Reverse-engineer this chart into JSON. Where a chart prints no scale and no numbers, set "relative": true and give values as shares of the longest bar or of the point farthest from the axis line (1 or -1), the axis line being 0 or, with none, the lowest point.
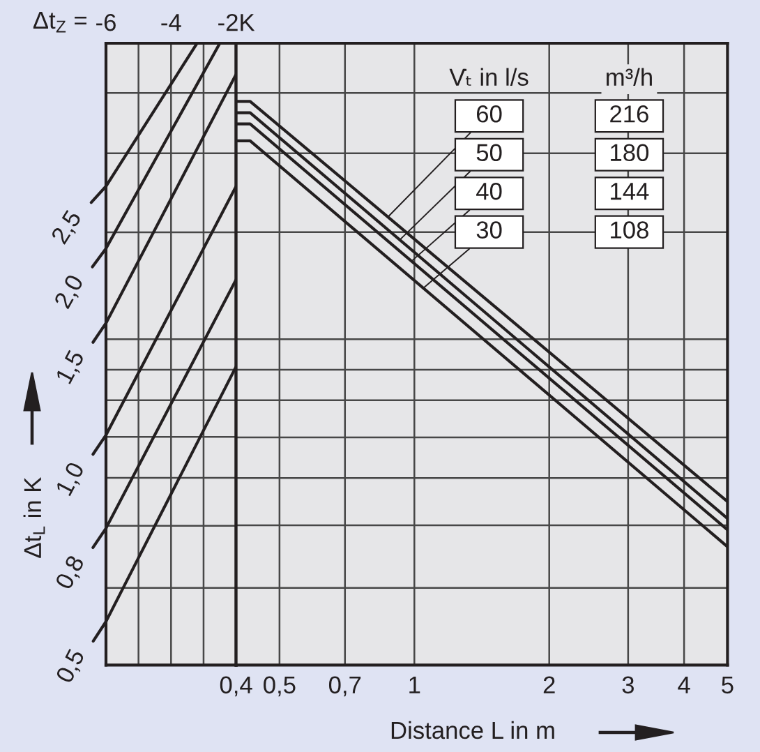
{
  "chart_data": [
    {
      "type": "line",
      "relative": true,
      "xlabel": "Δt$_{Z}$ =",
      "xlim": [
        -6,
        -2
      ],
      "xticks": [
        {
          "value": -6,
          "label": "-6"
        },
        {
          "value": -5,
          "label": null
        },
        {
          "value": -4,
          "label": "-4"
        },
        {
          "value": -3,
          "label": null
        },
        {
          "value": -2,
          "label": "-2K"
        }
      ],
      "ylabel": "Δt$_{L}$ in K",
      "grid": "x",
      "legend": "left",
      "series": [
        {
          "name": "2,5",
          "color": "#231f20",
          "x": [
            -6,
            -3.2
          ],
          "values": [
            0.77,
            1.0
          ]
        },
        {
          "name": "2,0",
          "color": "#231f20",
          "x": [
            -6,
            -2.5
          ],
          "values": [
            0.67,
            1.0
          ]
        },
        {
          "name": "1,5",
          "color": "#231f20",
          "x": [
            -6,
            -2
          ],
          "values": [
            0.55,
            0.95
          ]
        },
        {
          "name": "1,0",
          "color": "#231f20",
          "x": [
            -6,
            -2
          ],
          "values": [
            0.37,
            0.77
          ]
        },
        {
          "name": "0,8",
          "color": "#231f20",
          "x": [
            -6,
            -2
          ],
          "values": [
            0.22,
            0.62
          ]
        },
        {
          "name": "0,5",
          "color": "#231f20",
          "x": [
            -6,
            -2
          ],
          "values": [
            0.07,
            0.48
          ]
        }
      ],
      "ref_lines": [
        {
          "axis": "y",
          "value": 0.92
        },
        {
          "axis": "y",
          "value": 0.823
        },
        {
          "axis": "y",
          "value": 0.696
        },
        {
          "axis": "y",
          "value": 0.524
        },
        {
          "axis": "y",
          "value": 0.475
        },
        {
          "axis": "y",
          "value": 0.426
        },
        {
          "axis": "y",
          "value": 0.367
        },
        {
          "axis": "y",
          "value": 0.301
        },
        {
          "axis": "y",
          "value": 0.224
        },
        {
          "axis": "y",
          "value": 0.124
        }
      ]
    },
    {
      "type": "line",
      "relative": true,
      "log": "x",
      "xlabel": "Distance L in m",
      "xlim": [
        0.4,
        5
      ],
      "xticks": [
        {
          "value": 0.4,
          "label": "0,4"
        },
        {
          "value": 0.5,
          "label": "0,5"
        },
        {
          "value": 0.7,
          "label": "0,7"
        },
        1,
        2,
        3,
        4,
        5
      ],
      "grid": "x",
      "legend": "top right",
      "legend_title": "V̇ₜ in l/s",
      "annotations": [
        "m³/h",
        "216",
        "180",
        "144",
        "108"
      ],
      "series": [
        {
          "name": "60",
          "color": "#231f20",
          "x": [
            0.4,
            0.43,
            5
          ],
          "values": [
            1.0,
            1.0,
            0.29
          ]
        },
        {
          "name": "50",
          "color": "#231f20",
          "x": [
            0.4,
            0.43,
            5
          ],
          "values": [
            0.98,
            0.98,
            0.26
          ]
        },
        {
          "name": "40",
          "color": "#231f20",
          "x": [
            0.4,
            0.43,
            5
          ],
          "values": [
            0.96,
            0.96,
            0.24
          ]
        },
        {
          "name": "30",
          "color": "#231f20",
          "x": [
            0.4,
            0.43,
            5
          ],
          "values": [
            0.93,
            0.93,
            0.21
          ]
        }
      ],
      "ref_lines": [
        {
          "axis": "y",
          "value": 1.015
        },
        {
          "axis": "y",
          "value": 0.908
        },
        {
          "axis": "y",
          "value": 0.768
        },
        {
          "axis": "y",
          "value": 0.578
        },
        {
          "axis": "y",
          "value": 0.524
        },
        {
          "axis": "y",
          "value": 0.47
        },
        {
          "axis": "y",
          "value": 0.404
        },
        {
          "axis": "y",
          "value": 0.332
        },
        {
          "axis": "y",
          "value": 0.248
        },
        {
          "axis": "y",
          "value": 0.137
        }
      ]
    }
  ]
}
